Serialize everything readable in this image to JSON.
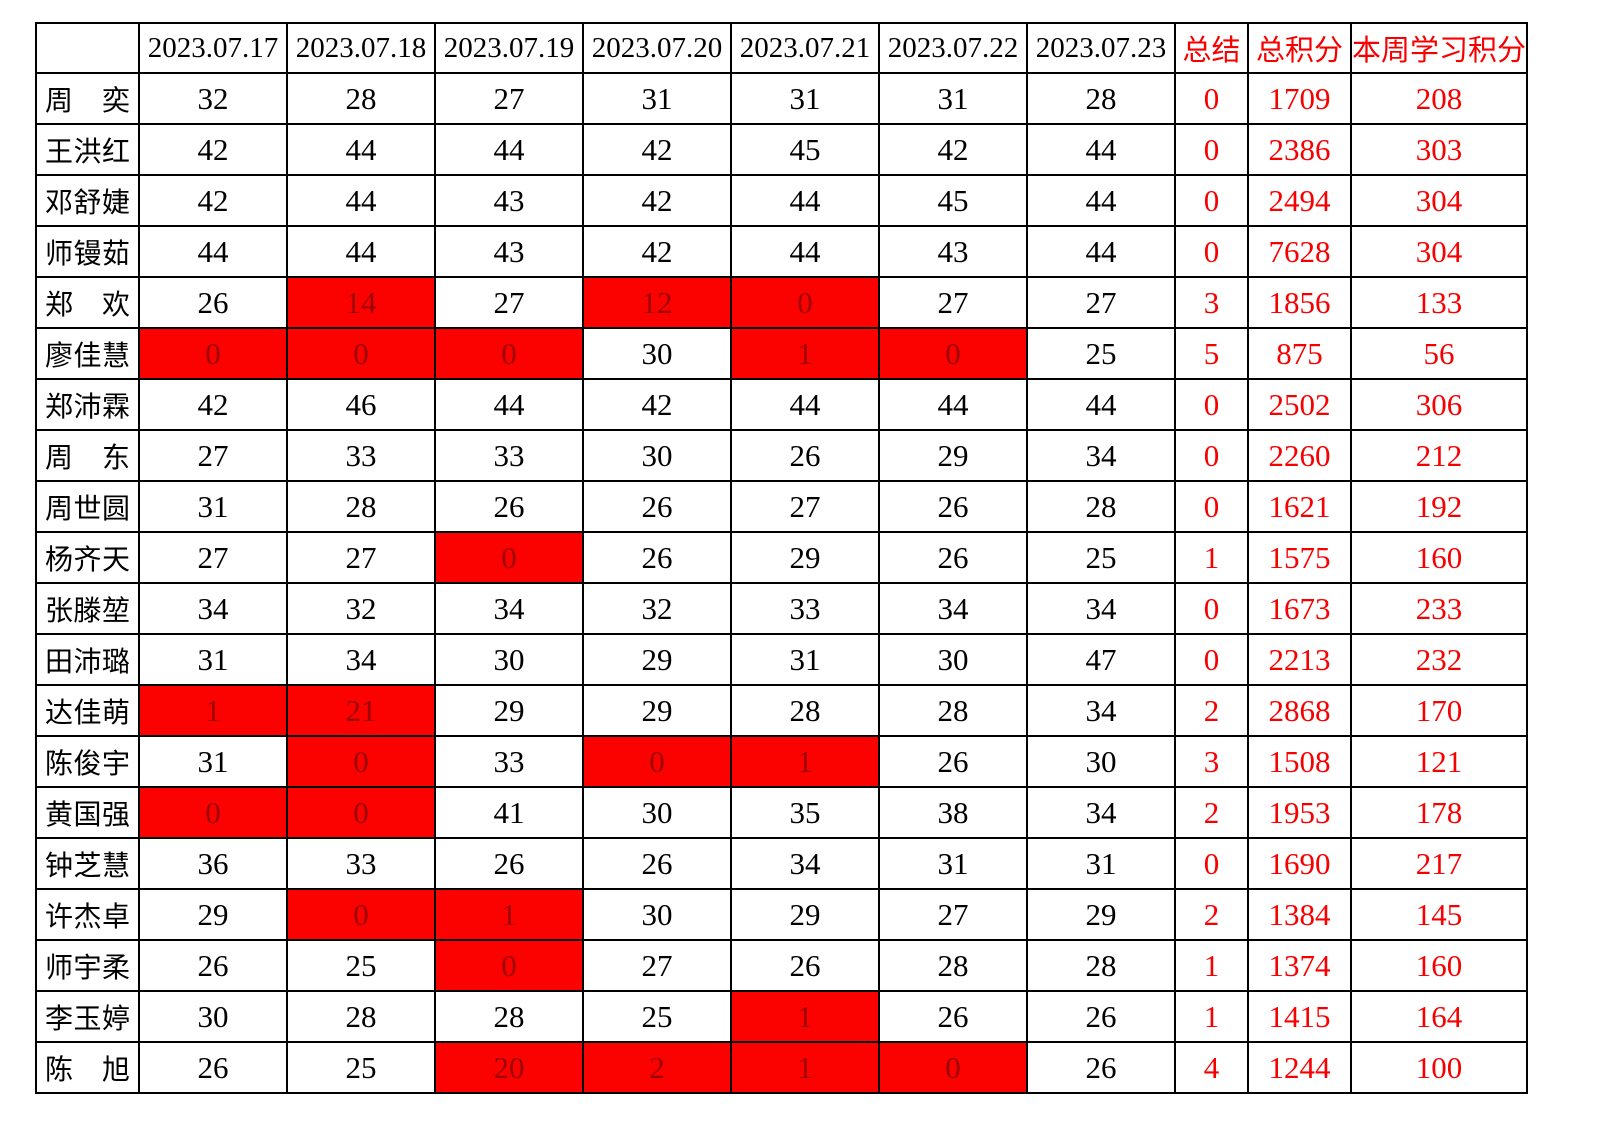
{
  "table": {
    "corner_label": "",
    "date_headers": [
      "2023.07.17",
      "2023.07.18",
      "2023.07.19",
      "2023.07.20",
      "2023.07.21",
      "2023.07.22",
      "2023.07.23"
    ],
    "summary_header": "总结",
    "total_header": "总积分",
    "week_header": "本周学习积分",
    "rows": [
      {
        "name": "周奕",
        "days": [
          {
            "v": 32,
            "red": false
          },
          {
            "v": 28,
            "red": false
          },
          {
            "v": 27,
            "red": false
          },
          {
            "v": 31,
            "red": false
          },
          {
            "v": 31,
            "red": false
          },
          {
            "v": 31,
            "red": false
          },
          {
            "v": 28,
            "red": false
          }
        ],
        "summary": 0,
        "total": 1709,
        "week": 208
      },
      {
        "name": "王洪红",
        "days": [
          {
            "v": 42,
            "red": false
          },
          {
            "v": 44,
            "red": false
          },
          {
            "v": 44,
            "red": false
          },
          {
            "v": 42,
            "red": false
          },
          {
            "v": 45,
            "red": false
          },
          {
            "v": 42,
            "red": false
          },
          {
            "v": 44,
            "red": false
          }
        ],
        "summary": 0,
        "total": 2386,
        "week": 303
      },
      {
        "name": "邓舒婕",
        "days": [
          {
            "v": 42,
            "red": false
          },
          {
            "v": 44,
            "red": false
          },
          {
            "v": 43,
            "red": false
          },
          {
            "v": 42,
            "red": false
          },
          {
            "v": 44,
            "red": false
          },
          {
            "v": 45,
            "red": false
          },
          {
            "v": 44,
            "red": false
          }
        ],
        "summary": 0,
        "total": 2494,
        "week": 304
      },
      {
        "name": "师镘茹",
        "days": [
          {
            "v": 44,
            "red": false
          },
          {
            "v": 44,
            "red": false
          },
          {
            "v": 43,
            "red": false
          },
          {
            "v": 42,
            "red": false
          },
          {
            "v": 44,
            "red": false
          },
          {
            "v": 43,
            "red": false
          },
          {
            "v": 44,
            "red": false
          }
        ],
        "summary": 0,
        "total": 7628,
        "week": 304
      },
      {
        "name": "郑欢",
        "days": [
          {
            "v": 26,
            "red": false
          },
          {
            "v": 14,
            "red": true
          },
          {
            "v": 27,
            "red": false
          },
          {
            "v": 12,
            "red": true
          },
          {
            "v": 0,
            "red": true
          },
          {
            "v": 27,
            "red": false
          },
          {
            "v": 27,
            "red": false
          }
        ],
        "summary": 3,
        "total": 1856,
        "week": 133
      },
      {
        "name": "廖佳慧",
        "days": [
          {
            "v": 0,
            "red": true
          },
          {
            "v": 0,
            "red": true
          },
          {
            "v": 0,
            "red": true
          },
          {
            "v": 30,
            "red": false
          },
          {
            "v": 1,
            "red": true
          },
          {
            "v": 0,
            "red": true
          },
          {
            "v": 25,
            "red": false
          }
        ],
        "summary": 5,
        "total": 875,
        "week": 56
      },
      {
        "name": "郑沛霖",
        "days": [
          {
            "v": 42,
            "red": false
          },
          {
            "v": 46,
            "red": false
          },
          {
            "v": 44,
            "red": false
          },
          {
            "v": 42,
            "red": false
          },
          {
            "v": 44,
            "red": false
          },
          {
            "v": 44,
            "red": false
          },
          {
            "v": 44,
            "red": false
          }
        ],
        "summary": 0,
        "total": 2502,
        "week": 306
      },
      {
        "name": "周东",
        "days": [
          {
            "v": 27,
            "red": false
          },
          {
            "v": 33,
            "red": false
          },
          {
            "v": 33,
            "red": false
          },
          {
            "v": 30,
            "red": false
          },
          {
            "v": 26,
            "red": false
          },
          {
            "v": 29,
            "red": false
          },
          {
            "v": 34,
            "red": false
          }
        ],
        "summary": 0,
        "total": 2260,
        "week": 212
      },
      {
        "name": "周世圆",
        "days": [
          {
            "v": 31,
            "red": false
          },
          {
            "v": 28,
            "red": false
          },
          {
            "v": 26,
            "red": false
          },
          {
            "v": 26,
            "red": false
          },
          {
            "v": 27,
            "red": false
          },
          {
            "v": 26,
            "red": false
          },
          {
            "v": 28,
            "red": false
          }
        ],
        "summary": 0,
        "total": 1621,
        "week": 192
      },
      {
        "name": "杨齐天",
        "days": [
          {
            "v": 27,
            "red": false
          },
          {
            "v": 27,
            "red": false
          },
          {
            "v": 0,
            "red": true
          },
          {
            "v": 26,
            "red": false
          },
          {
            "v": 29,
            "red": false
          },
          {
            "v": 26,
            "red": false
          },
          {
            "v": 25,
            "red": false
          }
        ],
        "summary": 1,
        "total": 1575,
        "week": 160
      },
      {
        "name": "张滕堃",
        "days": [
          {
            "v": 34,
            "red": false
          },
          {
            "v": 32,
            "red": false
          },
          {
            "v": 34,
            "red": false
          },
          {
            "v": 32,
            "red": false
          },
          {
            "v": 33,
            "red": false
          },
          {
            "v": 34,
            "red": false
          },
          {
            "v": 34,
            "red": false
          }
        ],
        "summary": 0,
        "total": 1673,
        "week": 233
      },
      {
        "name": "田沛璐",
        "days": [
          {
            "v": 31,
            "red": false
          },
          {
            "v": 34,
            "red": false
          },
          {
            "v": 30,
            "red": false
          },
          {
            "v": 29,
            "red": false
          },
          {
            "v": 31,
            "red": false
          },
          {
            "v": 30,
            "red": false
          },
          {
            "v": 47,
            "red": false
          }
        ],
        "summary": 0,
        "total": 2213,
        "week": 232
      },
      {
        "name": "达佳萌",
        "days": [
          {
            "v": 1,
            "red": true
          },
          {
            "v": 21,
            "red": true
          },
          {
            "v": 29,
            "red": false
          },
          {
            "v": 29,
            "red": false
          },
          {
            "v": 28,
            "red": false
          },
          {
            "v": 28,
            "red": false
          },
          {
            "v": 34,
            "red": false
          }
        ],
        "summary": 2,
        "total": 2868,
        "week": 170
      },
      {
        "name": "陈俊宇",
        "days": [
          {
            "v": 31,
            "red": false
          },
          {
            "v": 0,
            "red": true
          },
          {
            "v": 33,
            "red": false
          },
          {
            "v": 0,
            "red": true
          },
          {
            "v": 1,
            "red": true
          },
          {
            "v": 26,
            "red": false
          },
          {
            "v": 30,
            "red": false
          }
        ],
        "summary": 3,
        "total": 1508,
        "week": 121
      },
      {
        "name": "黄国强",
        "days": [
          {
            "v": 0,
            "red": true
          },
          {
            "v": 0,
            "red": true
          },
          {
            "v": 41,
            "red": false
          },
          {
            "v": 30,
            "red": false
          },
          {
            "v": 35,
            "red": false
          },
          {
            "v": 38,
            "red": false
          },
          {
            "v": 34,
            "red": false
          }
        ],
        "summary": 2,
        "total": 1953,
        "week": 178
      },
      {
        "name": "钟芝慧",
        "days": [
          {
            "v": 36,
            "red": false
          },
          {
            "v": 33,
            "red": false
          },
          {
            "v": 26,
            "red": false
          },
          {
            "v": 26,
            "red": false
          },
          {
            "v": 34,
            "red": false
          },
          {
            "v": 31,
            "red": false
          },
          {
            "v": 31,
            "red": false
          }
        ],
        "summary": 0,
        "total": 1690,
        "week": 217
      },
      {
        "name": "许杰卓",
        "days": [
          {
            "v": 29,
            "red": false
          },
          {
            "v": 0,
            "red": true
          },
          {
            "v": 1,
            "red": true
          },
          {
            "v": 30,
            "red": false
          },
          {
            "v": 29,
            "red": false
          },
          {
            "v": 27,
            "red": false
          },
          {
            "v": 29,
            "red": false
          }
        ],
        "summary": 2,
        "total": 1384,
        "week": 145
      },
      {
        "name": "师宇柔",
        "days": [
          {
            "v": 26,
            "red": false
          },
          {
            "v": 25,
            "red": false
          },
          {
            "v": 0,
            "red": true
          },
          {
            "v": 27,
            "red": false
          },
          {
            "v": 26,
            "red": false
          },
          {
            "v": 28,
            "red": false
          },
          {
            "v": 28,
            "red": false
          }
        ],
        "summary": 1,
        "total": 1374,
        "week": 160
      },
      {
        "name": "李玉婷",
        "days": [
          {
            "v": 30,
            "red": false
          },
          {
            "v": 28,
            "red": false
          },
          {
            "v": 28,
            "red": false
          },
          {
            "v": 25,
            "red": false
          },
          {
            "v": 1,
            "red": true
          },
          {
            "v": 26,
            "red": false
          },
          {
            "v": 26,
            "red": false
          }
        ],
        "summary": 1,
        "total": 1415,
        "week": 164
      },
      {
        "name": "陈旭",
        "days": [
          {
            "v": 26,
            "red": false
          },
          {
            "v": 25,
            "red": false
          },
          {
            "v": 20,
            "red": true
          },
          {
            "v": 2,
            "red": true
          },
          {
            "v": 1,
            "red": true
          },
          {
            "v": 0,
            "red": true
          },
          {
            "v": 26,
            "red": false
          }
        ],
        "summary": 4,
        "total": 1244,
        "week": 100
      }
    ]
  },
  "colors": {
    "grid_line": "#000000",
    "highlight_cell_bg": "#fb0100",
    "highlight_cell_text": "#9c0404",
    "accent_red_text": "#f80000",
    "default_text": "#000000"
  }
}
